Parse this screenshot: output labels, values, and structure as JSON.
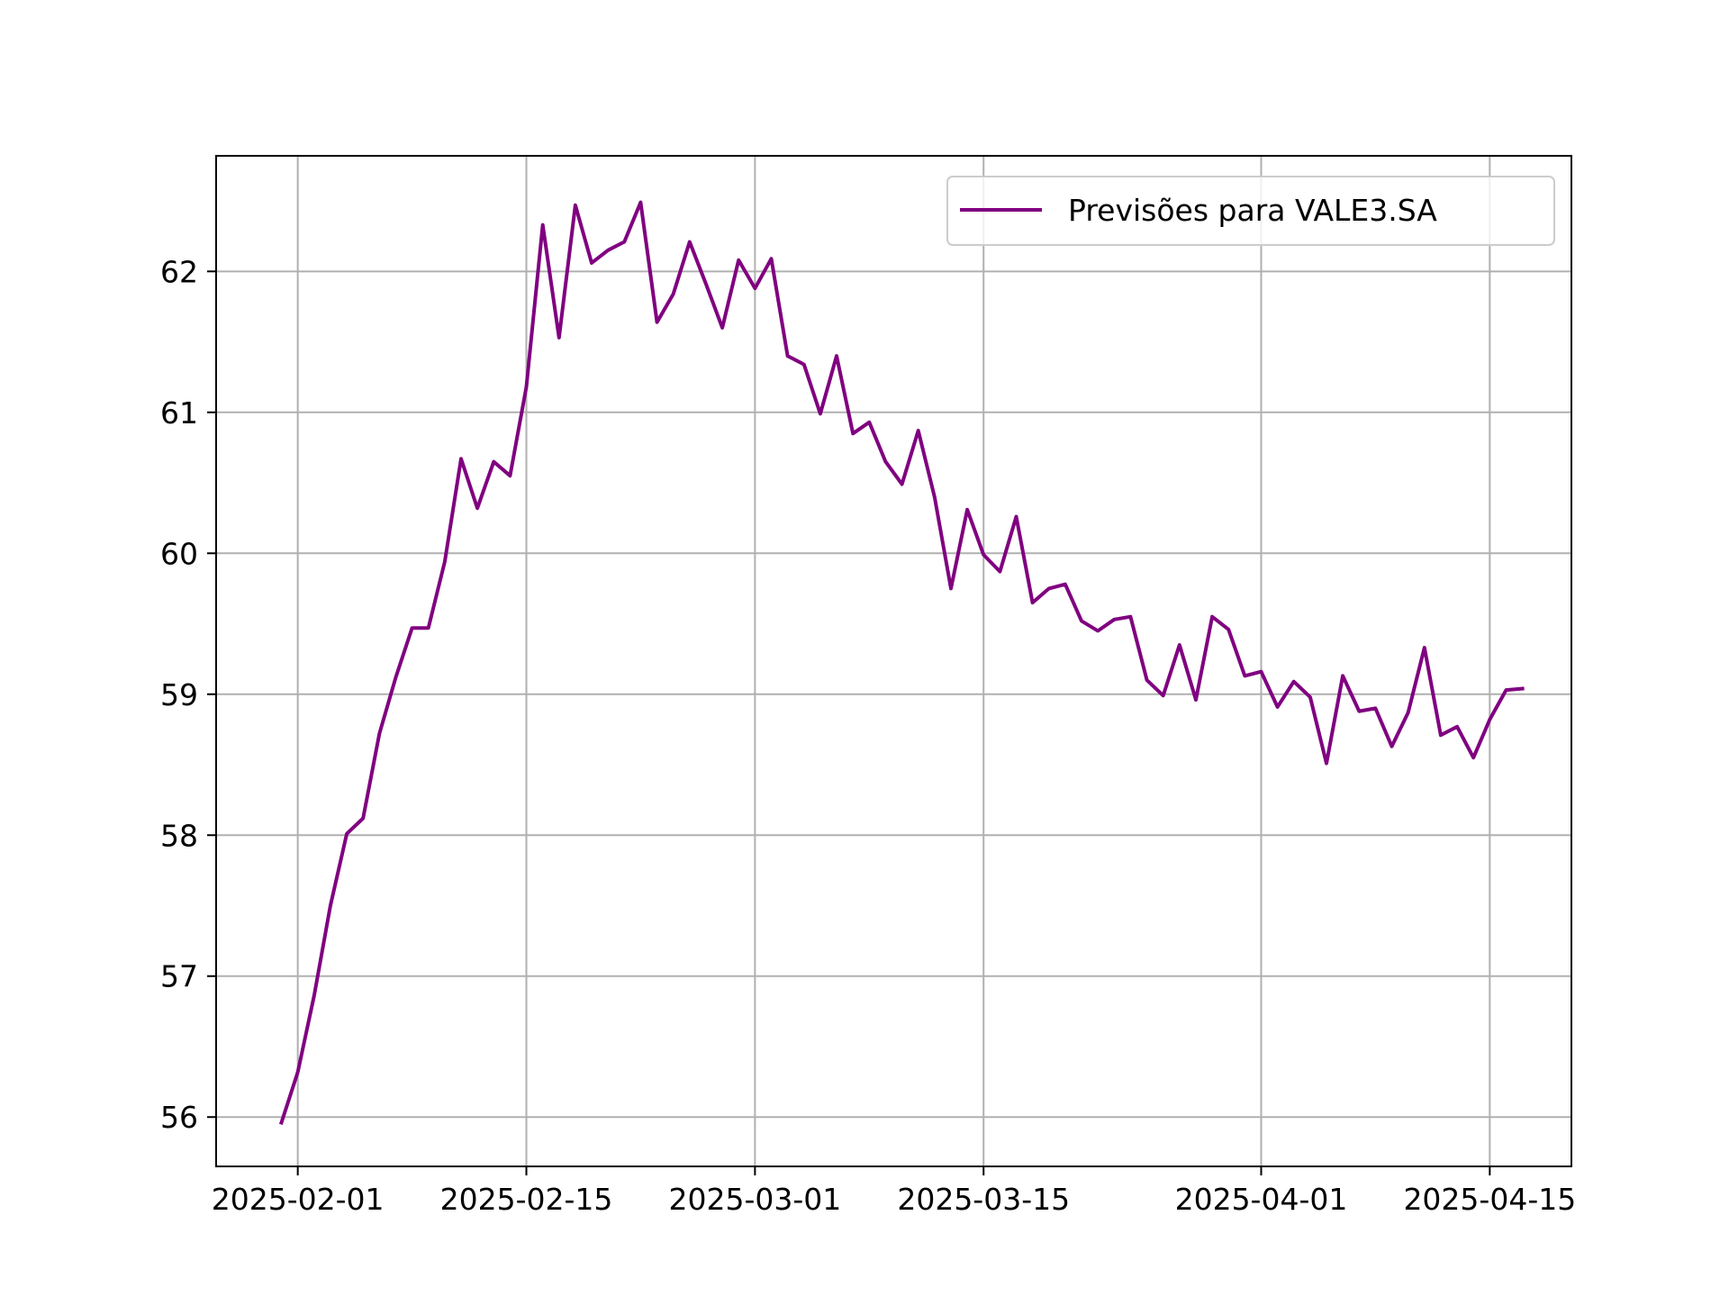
{
  "chart_data": {
    "type": "line",
    "title": "",
    "xlabel": "",
    "ylabel": "",
    "x_ticks": [
      "2025-02-01",
      "2025-02-15",
      "2025-03-01",
      "2025-03-15",
      "2025-04-01",
      "2025-04-15"
    ],
    "y_ticks": [
      56,
      57,
      58,
      59,
      60,
      61,
      62
    ],
    "xlim": [
      "2025-01-27",
      "2025-04-20"
    ],
    "ylim": [
      55.65,
      62.82
    ],
    "grid": true,
    "legend_position": "upper right",
    "colors": {
      "line": "#800080",
      "grid": "#b0b0b0",
      "axes": "#000000"
    },
    "series": [
      {
        "name": "Previsões para VALE3.SA",
        "x": [
          "2025-01-31",
          "2025-02-01",
          "2025-02-02",
          "2025-02-03",
          "2025-02-04",
          "2025-02-05",
          "2025-02-06",
          "2025-02-07",
          "2025-02-08",
          "2025-02-09",
          "2025-02-10",
          "2025-02-11",
          "2025-02-12",
          "2025-02-13",
          "2025-02-14",
          "2025-02-15",
          "2025-02-16",
          "2025-02-17",
          "2025-02-18",
          "2025-02-19",
          "2025-02-20",
          "2025-02-21",
          "2025-02-22",
          "2025-02-23",
          "2025-02-24",
          "2025-02-25",
          "2025-02-26",
          "2025-02-27",
          "2025-02-28",
          "2025-03-01",
          "2025-03-02",
          "2025-03-03",
          "2025-03-04",
          "2025-03-05",
          "2025-03-06",
          "2025-03-07",
          "2025-03-08",
          "2025-03-09",
          "2025-03-10",
          "2025-03-11",
          "2025-03-12",
          "2025-03-13",
          "2025-03-14",
          "2025-03-15",
          "2025-03-16",
          "2025-03-17",
          "2025-03-18",
          "2025-03-19",
          "2025-03-20",
          "2025-03-21",
          "2025-03-22",
          "2025-03-23",
          "2025-03-24",
          "2025-03-25",
          "2025-03-26",
          "2025-03-27",
          "2025-03-28",
          "2025-03-29",
          "2025-03-30",
          "2025-03-31",
          "2025-04-01",
          "2025-04-02",
          "2025-04-03",
          "2025-04-04",
          "2025-04-05",
          "2025-04-06",
          "2025-04-07",
          "2025-04-08",
          "2025-04-09",
          "2025-04-10",
          "2025-04-11",
          "2025-04-12",
          "2025-04-13",
          "2025-04-14",
          "2025-04-15",
          "2025-04-16",
          "2025-04-17"
        ],
        "y": [
          55.96,
          56.32,
          56.86,
          57.5,
          58.01,
          58.12,
          58.72,
          59.12,
          59.47,
          59.47,
          59.94,
          60.67,
          60.32,
          60.65,
          60.55,
          61.18,
          62.33,
          61.53,
          62.47,
          62.06,
          62.15,
          62.21,
          62.49,
          61.64,
          61.84,
          62.21,
          61.91,
          61.6,
          62.08,
          61.88,
          62.09,
          61.4,
          61.34,
          60.99,
          61.4,
          60.85,
          60.93,
          60.65,
          60.49,
          60.87,
          60.4,
          59.75,
          60.31,
          59.99,
          59.87,
          60.26,
          59.65,
          59.75,
          59.78,
          59.52,
          59.45,
          59.53,
          59.55,
          59.1,
          58.99,
          59.35,
          58.96,
          59.55,
          59.46,
          59.13,
          59.16,
          58.91,
          59.09,
          58.98,
          58.51,
          59.13,
          58.88,
          58.9,
          58.63,
          58.87,
          59.33,
          58.71,
          58.77,
          58.55,
          58.82,
          59.03,
          59.04
        ]
      }
    ]
  }
}
